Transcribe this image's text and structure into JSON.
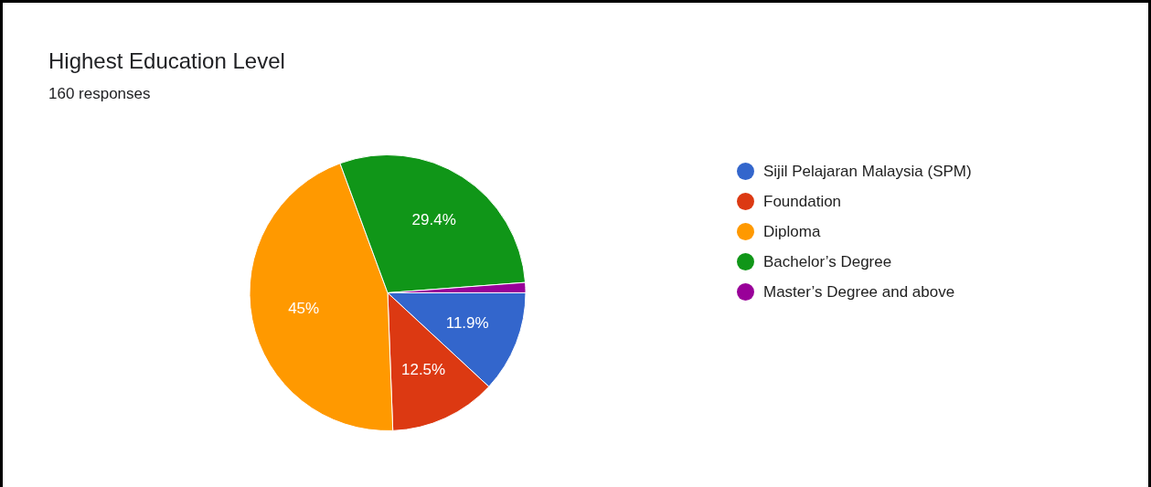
{
  "chart_data": {
    "type": "pie",
    "title": "Highest Education Level",
    "subtitle": "160 responses",
    "categories": [
      "Sijil Pelajaran Malaysia (SPM)",
      "Foundation",
      "Diploma",
      "Bachelor’s Degree",
      "Master’s Degree and above"
    ],
    "values": [
      11.9,
      12.5,
      45,
      29.4,
      1.2
    ],
    "colors": [
      "#3366cc",
      "#dc3912",
      "#ff9900",
      "#109618",
      "#990099"
    ],
    "value_labels": [
      "11.9%",
      "12.5%",
      "45%",
      "29.4%",
      null
    ],
    "legend": "right"
  }
}
